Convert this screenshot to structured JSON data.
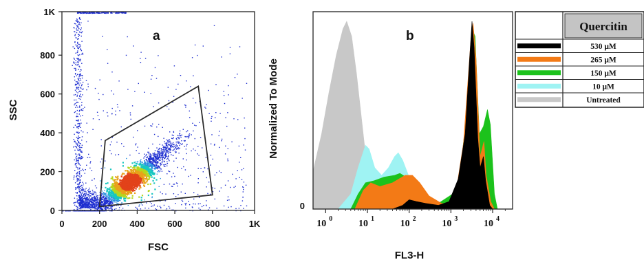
{
  "chart_data": [
    {
      "type": "scatter",
      "panel_label": "a",
      "xlabel": "FSC",
      "ylabel": "SSC",
      "xlim": [
        0,
        1024
      ],
      "ylim": [
        0,
        1024
      ],
      "x_ticks": [
        0,
        200,
        400,
        600,
        800,
        1024
      ],
      "x_tick_labels": [
        "0",
        "200",
        "400",
        "600",
        "800",
        "1K"
      ],
      "y_ticks": [
        0,
        200,
        400,
        600,
        800,
        1024
      ],
      "y_tick_labels": [
        "0",
        "200",
        "400",
        "600",
        "800",
        "1K"
      ],
      "gate_polygon": [
        [
          200,
          20
        ],
        [
          230,
          360
        ],
        [
          725,
          640
        ],
        [
          800,
          80
        ]
      ],
      "density_center": [
        360,
        150
      ],
      "colors": {
        "sparse": "#1f2fd0",
        "mid": "#19c7c0",
        "dense": "#e2421a"
      }
    },
    {
      "type": "area",
      "panel_label": "b",
      "xlabel": "FL3-H",
      "ylabel": "Normalized To Mode",
      "x_scale": "log",
      "xlim": [
        0.5,
        30000
      ],
      "ylim": [
        0,
        100
      ],
      "x_ticks": [
        1,
        10,
        100,
        1000,
        10000
      ],
      "x_tick_labels": [
        {
          "base": "10",
          "exp": "0"
        },
        {
          "base": "10",
          "exp": "1"
        },
        {
          "base": "10",
          "exp": "2"
        },
        {
          "base": "10",
          "exp": "3"
        },
        {
          "base": "10",
          "exp": "4"
        }
      ],
      "y_ticks": [
        0
      ],
      "y_tick_labels": [
        "0"
      ],
      "series": [
        {
          "name": "Untreated",
          "color": "#c8c8c8",
          "points": [
            [
              0.5,
              20
            ],
            [
              0.8,
              40
            ],
            [
              1.2,
              62
            ],
            [
              1.8,
              82
            ],
            [
              2.6,
              96
            ],
            [
              3.2,
              100
            ],
            [
              4.2,
              92
            ],
            [
              5.5,
              72
            ],
            [
              7.5,
              45
            ],
            [
              10,
              20
            ],
            [
              14,
              8
            ],
            [
              20,
              3
            ],
            [
              40,
              1
            ],
            [
              100,
              0
            ]
          ]
        },
        {
          "name": "10 µM",
          "color": "#9ff3f3",
          "points": [
            [
              2,
              0
            ],
            [
              4,
              8
            ],
            [
              6,
              22
            ],
            [
              9,
              34
            ],
            [
              11,
              32
            ],
            [
              15,
              22
            ],
            [
              22,
              18
            ],
            [
              32,
              22
            ],
            [
              45,
              28
            ],
            [
              55,
              30
            ],
            [
              70,
              26
            ],
            [
              100,
              17
            ],
            [
              200,
              6
            ],
            [
              500,
              2
            ],
            [
              1500,
              5
            ],
            [
              2500,
              25
            ],
            [
              3500,
              40
            ],
            [
              4500,
              30
            ],
            [
              7000,
              5
            ],
            [
              12000,
              0
            ]
          ]
        },
        {
          "name": "150 µM",
          "color": "#1cc21c",
          "points": [
            [
              4,
              0
            ],
            [
              6,
              8
            ],
            [
              9,
              14
            ],
            [
              14,
              15
            ],
            [
              25,
              17
            ],
            [
              45,
              18
            ],
            [
              60,
              19
            ],
            [
              100,
              16
            ],
            [
              200,
              6
            ],
            [
              500,
              3
            ],
            [
              1500,
              10
            ],
            [
              2500,
              55
            ],
            [
              3200,
              96
            ],
            [
              3800,
              92
            ],
            [
              4800,
              40
            ],
            [
              6000,
              44
            ],
            [
              7500,
              53
            ],
            [
              8800,
              45
            ],
            [
              11000,
              8
            ],
            [
              13000,
              0
            ]
          ]
        },
        {
          "name": "265 µM",
          "color": "#f37a16",
          "points": [
            [
              5,
              0
            ],
            [
              8,
              10
            ],
            [
              12,
              14
            ],
            [
              20,
              12
            ],
            [
              40,
              14
            ],
            [
              80,
              18
            ],
            [
              120,
              18
            ],
            [
              180,
              14
            ],
            [
              300,
              7
            ],
            [
              600,
              3
            ],
            [
              1200,
              3
            ],
            [
              2000,
              35
            ],
            [
              3000,
              90
            ],
            [
              3400,
              99
            ],
            [
              4000,
              80
            ],
            [
              5000,
              28
            ],
            [
              6200,
              36
            ],
            [
              7000,
              18
            ],
            [
              9000,
              4
            ],
            [
              11000,
              0
            ]
          ]
        },
        {
          "name": "530 µM",
          "color": "#000000",
          "points": [
            [
              40,
              0
            ],
            [
              70,
              2
            ],
            [
              100,
              5
            ],
            [
              150,
              4
            ],
            [
              250,
              3
            ],
            [
              500,
              2
            ],
            [
              900,
              4
            ],
            [
              1500,
              16
            ],
            [
              2200,
              40
            ],
            [
              2800,
              80
            ],
            [
              3200,
              100
            ],
            [
              3600,
              86
            ],
            [
              4400,
              38
            ],
            [
              5000,
              22
            ],
            [
              6000,
              28
            ],
            [
              6800,
              15
            ],
            [
              8500,
              2
            ],
            [
              10000,
              0
            ]
          ]
        }
      ],
      "legend": {
        "header": "Quercitin",
        "entries": [
          "530 μM",
          "265 μM",
          "150 μM",
          "10 μM",
          "Untreated"
        ],
        "colors": [
          "#000000",
          "#f37a16",
          "#1cc21c",
          "#9ff3f3",
          "#c8c8c8"
        ]
      }
    }
  ]
}
